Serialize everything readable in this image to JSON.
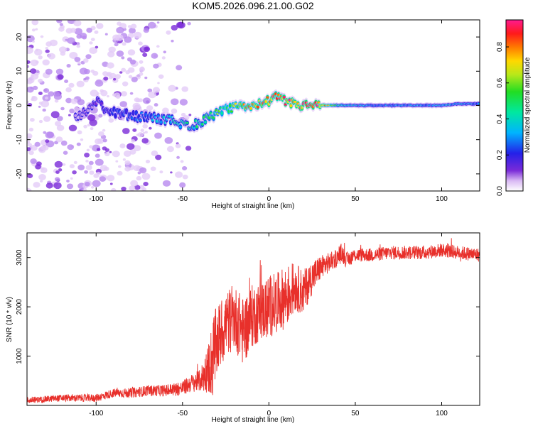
{
  "title": "KOM5.2026.096.21.00.G02",
  "chart_data": [
    {
      "type": "heatmap",
      "name": "spectrogram",
      "title": "KOM5.2026.096.21.00.G02",
      "xlabel": "Height of straight line (km)",
      "ylabel": "Frequency (Hz)",
      "xlim": [
        -140,
        122
      ],
      "ylim": [
        -25,
        25
      ],
      "xticks": [
        -100,
        -50,
        0,
        50,
        100
      ],
      "xtick_labels": [
        "-100",
        "-50",
        "0",
        "50",
        "100"
      ],
      "yticks": [
        -20,
        -10,
        0,
        10,
        20
      ],
      "ytick_labels": [
        "-20",
        "-10",
        "0",
        "10",
        "20"
      ],
      "ridge": {
        "x": [
          -140,
          -110,
          -100,
          -98,
          -95,
          -90,
          -80,
          -70,
          -60,
          -55,
          -50,
          -45,
          -40,
          -35,
          -30,
          -25,
          -20,
          -15,
          -10,
          -5,
          0,
          5,
          10,
          15,
          20,
          25,
          30,
          40,
          50,
          60,
          70,
          80,
          90,
          100,
          110,
          122
        ],
        "freq": [
          -4,
          -3,
          0,
          2,
          -1,
          -2,
          -3,
          -3.5,
          -4,
          -4.5,
          -5.5,
          -6,
          -5,
          -3.5,
          -2,
          -1.5,
          -0.7,
          -0.2,
          0,
          0.5,
          1.5,
          2.5,
          1,
          0.3,
          0,
          0,
          0,
          0,
          0,
          0,
          0,
          0,
          0,
          0,
          0.5,
          0.5
        ],
        "amplitude": [
          0.05,
          0.08,
          0.12,
          0.15,
          0.18,
          0.22,
          0.25,
          0.3,
          0.35,
          0.4,
          0.45,
          0.4,
          0.45,
          0.5,
          0.55,
          0.6,
          0.65,
          0.7,
          0.75,
          0.8,
          0.85,
          0.8,
          0.9,
          0.85,
          0.9,
          0.92,
          0.85,
          0.45,
          0.35,
          0.3,
          0.3,
          0.3,
          0.3,
          0.35,
          0.35,
          0.3
        ]
      },
      "colorbar": {
        "label": "Normalized spectral amplitude",
        "range": [
          0,
          0.95
        ],
        "ticks": [
          0.0,
          0.2,
          0.4,
          0.6,
          0.8
        ],
        "tick_labels": [
          "0.0",
          "0.2",
          "0.4",
          "0.6",
          "0.8"
        ]
      }
    },
    {
      "type": "line",
      "name": "snr",
      "xlabel": "Height of straight line (km)",
      "ylabel": "SNR (10 * v/v)",
      "xlim": [
        -140,
        122
      ],
      "ylim": [
        0,
        3500
      ],
      "xticks": [
        -100,
        -50,
        0,
        50,
        100
      ],
      "xtick_labels": [
        "-100",
        "-50",
        "0",
        "50",
        "100"
      ],
      "yticks": [
        1000,
        2000,
        3000
      ],
      "ytick_labels": [
        "1000",
        "2000",
        "3000"
      ],
      "series": [
        {
          "name": "SNR",
          "color": "#e8302b",
          "x": [
            -140,
            -120,
            -100,
            -90,
            -80,
            -70,
            -60,
            -50,
            -45,
            -40,
            -35,
            -32,
            -30,
            -25,
            -20,
            -15,
            -10,
            -5,
            0,
            5,
            10,
            15,
            20,
            25,
            30,
            35,
            40,
            42,
            45,
            50,
            60,
            70,
            80,
            90,
            100,
            110,
            122
          ],
          "y": [
            100,
            150,
            150,
            250,
            250,
            300,
            300,
            350,
            450,
            500,
            750,
            1000,
            1300,
            1650,
            1800,
            1500,
            1800,
            1900,
            2000,
            2100,
            2200,
            2400,
            2300,
            2600,
            2800,
            2900,
            3000,
            3100,
            2950,
            3050,
            3050,
            3100,
            3100,
            3100,
            3150,
            3100,
            3050
          ],
          "noise": [
            60,
            70,
            80,
            90,
            100,
            110,
            120,
            150,
            180,
            220,
            500,
            900,
            700,
            700,
            650,
            700,
            650,
            600,
            650,
            600,
            650,
            500,
            450,
            350,
            250,
            200,
            180,
            200,
            160,
            140,
            140,
            140,
            140,
            140,
            140,
            140,
            140
          ]
        }
      ]
    }
  ]
}
